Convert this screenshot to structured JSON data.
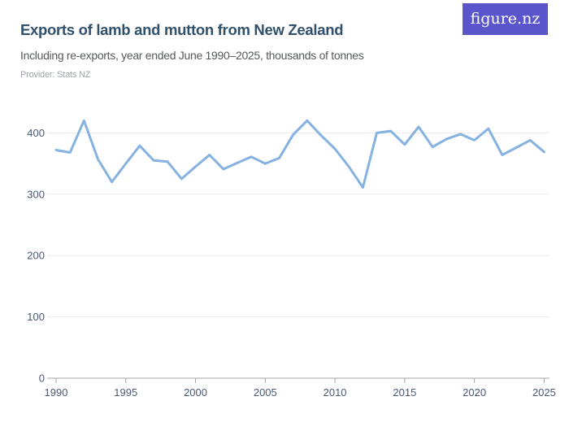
{
  "header": {
    "title": "Exports of lamb and mutton from New Zealand",
    "subtitle": "Including re-exports, year ended June 1990–2025, thousands of tonnes",
    "provider_label": "Provider: Stats NZ",
    "logo": "figure.nz"
  },
  "colors": {
    "accent": "#5a55cb",
    "title": "#30506b",
    "subtitle": "#56595e",
    "provider": "#9fa4aa",
    "axis_label": "#4a5878",
    "gridline": "#e9e9e9",
    "axis_line": "#a6a6a6",
    "line": "#85b2e0"
  },
  "chart_data": {
    "type": "line",
    "title": "Exports of lamb and mutton from New Zealand",
    "subtitle": "Including re-exports, year ended June 1990–2025, thousands of tonnes",
    "provider": "Stats NZ",
    "unit": "thousands of tonnes",
    "xlabel": "",
    "ylabel": "",
    "xlim": [
      1990,
      2025
    ],
    "ylim": [
      0,
      440
    ],
    "xticks": [
      1990,
      1995,
      2000,
      2005,
      2010,
      2015,
      2020,
      2025
    ],
    "yticks": [
      0,
      100,
      200,
      300,
      400
    ],
    "grid": "horizontal",
    "legend": "none",
    "line_color": "#85b2e0",
    "x": [
      1990,
      1991,
      1992,
      1993,
      1994,
      1995,
      1996,
      1997,
      1998,
      1999,
      2000,
      2001,
      2002,
      2003,
      2004,
      2005,
      2006,
      2007,
      2008,
      2009,
      2010,
      2011,
      2012,
      2013,
      2014,
      2015,
      2016,
      2017,
      2018,
      2019,
      2020,
      2021,
      2022,
      2023,
      2024,
      2025
    ],
    "series": [
      {
        "name": "Exports of lamb and mutton (thousands of tonnes)",
        "values": [
          372,
          368,
          420,
          357,
          320,
          350,
          379,
          355,
          353,
          325,
          345,
          364,
          341,
          351,
          361,
          350,
          359,
          397,
          420,
          396,
          374,
          345,
          311,
          400,
          403,
          381,
          410,
          377,
          390,
          398,
          388,
          407,
          364,
          376,
          388,
          369
        ]
      }
    ]
  }
}
